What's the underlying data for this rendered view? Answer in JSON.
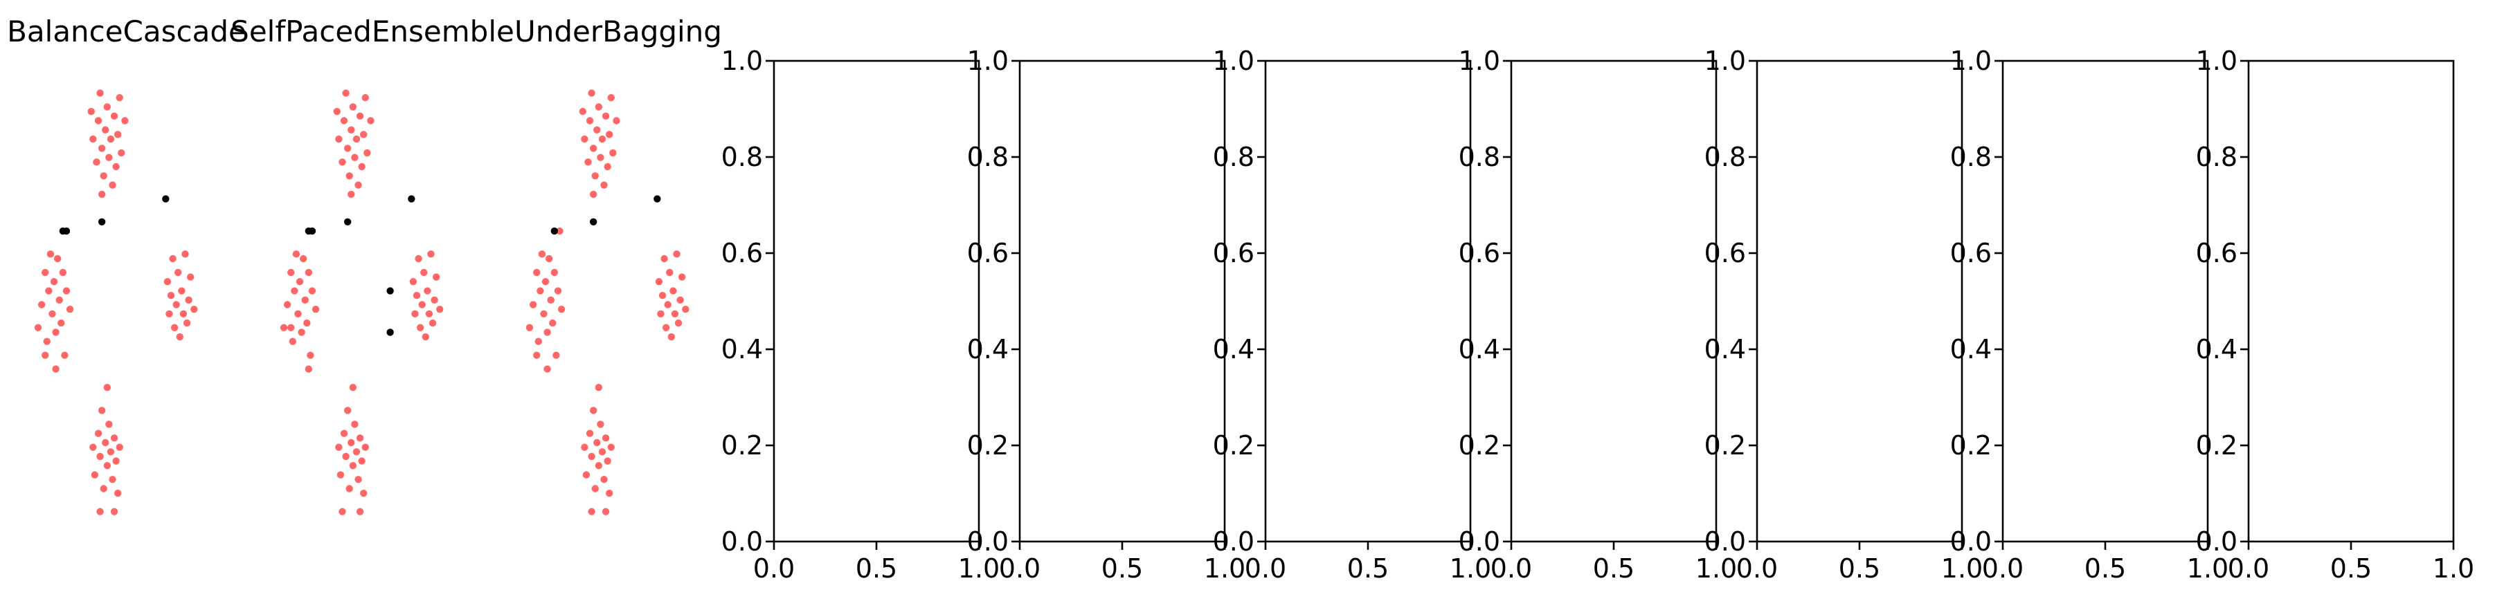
{
  "chart_data": [
    {
      "type": "scatter",
      "title": "BalanceCascade",
      "axes_visible": false,
      "series": [
        {
          "color": "#ff0000",
          "opacity": 0.6,
          "points": [
            [
              0.0,
              0.45
            ],
            [
              0.02,
              0.5
            ],
            [
              0.04,
              0.57
            ],
            [
              0.05,
              0.42
            ],
            [
              0.06,
              0.53
            ],
            [
              0.07,
              0.61
            ],
            [
              0.08,
              0.48
            ],
            [
              0.09,
              0.55
            ],
            [
              0.1,
              0.44
            ],
            [
              0.11,
              0.6
            ],
            [
              0.12,
              0.51
            ],
            [
              0.13,
              0.46
            ],
            [
              0.14,
              0.57
            ],
            [
              0.15,
              0.39
            ],
            [
              0.16,
              0.53
            ],
            [
              0.18,
              0.49
            ],
            [
              0.1,
              0.36
            ],
            [
              0.04,
              0.39
            ],
            [
              0.3,
              0.92
            ],
            [
              0.31,
              0.86
            ],
            [
              0.33,
              0.81
            ],
            [
              0.34,
              0.9
            ],
            [
              0.35,
              0.96
            ],
            [
              0.36,
              0.84
            ],
            [
              0.37,
              0.78
            ],
            [
              0.38,
              0.88
            ],
            [
              0.39,
              0.93
            ],
            [
              0.4,
              0.82
            ],
            [
              0.41,
              0.86
            ],
            [
              0.42,
              0.76
            ],
            [
              0.43,
              0.91
            ],
            [
              0.44,
              0.8
            ],
            [
              0.45,
              0.87
            ],
            [
              0.46,
              0.95
            ],
            [
              0.47,
              0.83
            ],
            [
              0.49,
              0.9
            ],
            [
              0.36,
              0.74
            ],
            [
              0.73,
              0.55
            ],
            [
              0.74,
              0.48
            ],
            [
              0.75,
              0.52
            ],
            [
              0.76,
              0.6
            ],
            [
              0.77,
              0.45
            ],
            [
              0.78,
              0.5
            ],
            [
              0.79,
              0.57
            ],
            [
              0.8,
              0.43
            ],
            [
              0.81,
              0.53
            ],
            [
              0.82,
              0.48
            ],
            [
              0.83,
              0.61
            ],
            [
              0.84,
              0.46
            ],
            [
              0.85,
              0.51
            ],
            [
              0.86,
              0.56
            ],
            [
              0.88,
              0.49
            ],
            [
              0.31,
              0.19
            ],
            [
              0.32,
              0.13
            ],
            [
              0.34,
              0.22
            ],
            [
              0.35,
              0.17
            ],
            [
              0.36,
              0.27
            ],
            [
              0.37,
              0.1
            ],
            [
              0.38,
              0.2
            ],
            [
              0.39,
              0.15
            ],
            [
              0.4,
              0.24
            ],
            [
              0.41,
              0.18
            ],
            [
              0.42,
              0.12
            ],
            [
              0.43,
              0.21
            ],
            [
              0.44,
              0.16
            ],
            [
              0.45,
              0.09
            ],
            [
              0.46,
              0.19
            ],
            [
              0.35,
              0.05
            ],
            [
              0.43,
              0.05
            ],
            [
              0.39,
              0.32
            ]
          ]
        },
        {
          "color": "#000000",
          "opacity": 1,
          "points": [
            [
              0.14,
              0.66
            ],
            [
              0.16,
              0.66
            ],
            [
              0.36,
              0.68
            ],
            [
              0.72,
              0.73
            ]
          ]
        }
      ]
    },
    {
      "type": "scatter",
      "title": "SelfPacedEnsemble",
      "axes_visible": false,
      "series": [
        {
          "color": "#ff0000",
          "opacity": 0.6,
          "points": [
            [
              0.0,
              0.45
            ],
            [
              0.02,
              0.5
            ],
            [
              0.04,
              0.57
            ],
            [
              0.05,
              0.42
            ],
            [
              0.06,
              0.53
            ],
            [
              0.07,
              0.61
            ],
            [
              0.08,
              0.48
            ],
            [
              0.09,
              0.55
            ],
            [
              0.1,
              0.44
            ],
            [
              0.11,
              0.6
            ],
            [
              0.12,
              0.51
            ],
            [
              0.13,
              0.46
            ],
            [
              0.14,
              0.57
            ],
            [
              0.15,
              0.39
            ],
            [
              0.16,
              0.53
            ],
            [
              0.18,
              0.49
            ],
            [
              0.14,
              0.36
            ],
            [
              0.04,
              0.45
            ],
            [
              0.3,
              0.92
            ],
            [
              0.31,
              0.86
            ],
            [
              0.33,
              0.81
            ],
            [
              0.34,
              0.9
            ],
            [
              0.35,
              0.96
            ],
            [
              0.36,
              0.84
            ],
            [
              0.37,
              0.78
            ],
            [
              0.38,
              0.88
            ],
            [
              0.39,
              0.93
            ],
            [
              0.4,
              0.82
            ],
            [
              0.41,
              0.86
            ],
            [
              0.42,
              0.76
            ],
            [
              0.43,
              0.91
            ],
            [
              0.44,
              0.8
            ],
            [
              0.45,
              0.87
            ],
            [
              0.46,
              0.95
            ],
            [
              0.47,
              0.83
            ],
            [
              0.49,
              0.9
            ],
            [
              0.38,
              0.74
            ],
            [
              0.73,
              0.55
            ],
            [
              0.74,
              0.48
            ],
            [
              0.75,
              0.52
            ],
            [
              0.76,
              0.6
            ],
            [
              0.77,
              0.45
            ],
            [
              0.78,
              0.5
            ],
            [
              0.79,
              0.57
            ],
            [
              0.8,
              0.43
            ],
            [
              0.81,
              0.53
            ],
            [
              0.82,
              0.48
            ],
            [
              0.83,
              0.61
            ],
            [
              0.84,
              0.46
            ],
            [
              0.85,
              0.51
            ],
            [
              0.86,
              0.56
            ],
            [
              0.88,
              0.49
            ],
            [
              0.31,
              0.19
            ],
            [
              0.32,
              0.13
            ],
            [
              0.34,
              0.22
            ],
            [
              0.35,
              0.17
            ],
            [
              0.36,
              0.27
            ],
            [
              0.37,
              0.1
            ],
            [
              0.38,
              0.2
            ],
            [
              0.39,
              0.15
            ],
            [
              0.4,
              0.24
            ],
            [
              0.41,
              0.18
            ],
            [
              0.42,
              0.12
            ],
            [
              0.43,
              0.21
            ],
            [
              0.44,
              0.16
            ],
            [
              0.45,
              0.09
            ],
            [
              0.46,
              0.19
            ],
            [
              0.33,
              0.05
            ],
            [
              0.43,
              0.05
            ],
            [
              0.39,
              0.32
            ]
          ]
        },
        {
          "color": "#000000",
          "opacity": 1,
          "points": [
            [
              0.14,
              0.66
            ],
            [
              0.16,
              0.66
            ],
            [
              0.36,
              0.68
            ],
            [
              0.72,
              0.73
            ],
            [
              0.6,
              0.53
            ],
            [
              0.6,
              0.44
            ]
          ]
        }
      ]
    },
    {
      "type": "scatter",
      "title": "UnderBagging",
      "axes_visible": false,
      "series": [
        {
          "color": "#ff0000",
          "opacity": 0.6,
          "points": [
            [
              0.0,
              0.45
            ],
            [
              0.02,
              0.5
            ],
            [
              0.04,
              0.57
            ],
            [
              0.05,
              0.42
            ],
            [
              0.06,
              0.53
            ],
            [
              0.07,
              0.61
            ],
            [
              0.08,
              0.48
            ],
            [
              0.09,
              0.55
            ],
            [
              0.1,
              0.44
            ],
            [
              0.11,
              0.6
            ],
            [
              0.12,
              0.51
            ],
            [
              0.13,
              0.46
            ],
            [
              0.14,
              0.57
            ],
            [
              0.15,
              0.39
            ],
            [
              0.16,
              0.53
            ],
            [
              0.18,
              0.49
            ],
            [
              0.1,
              0.36
            ],
            [
              0.04,
              0.39
            ],
            [
              0.17,
              0.66
            ],
            [
              0.3,
              0.92
            ],
            [
              0.31,
              0.86
            ],
            [
              0.33,
              0.81
            ],
            [
              0.34,
              0.9
            ],
            [
              0.35,
              0.96
            ],
            [
              0.36,
              0.84
            ],
            [
              0.37,
              0.78
            ],
            [
              0.38,
              0.88
            ],
            [
              0.39,
              0.93
            ],
            [
              0.4,
              0.82
            ],
            [
              0.41,
              0.86
            ],
            [
              0.42,
              0.76
            ],
            [
              0.43,
              0.91
            ],
            [
              0.44,
              0.8
            ],
            [
              0.45,
              0.87
            ],
            [
              0.46,
              0.95
            ],
            [
              0.47,
              0.83
            ],
            [
              0.49,
              0.9
            ],
            [
              0.36,
              0.74
            ],
            [
              0.73,
              0.55
            ],
            [
              0.74,
              0.48
            ],
            [
              0.75,
              0.52
            ],
            [
              0.76,
              0.6
            ],
            [
              0.77,
              0.45
            ],
            [
              0.78,
              0.5
            ],
            [
              0.79,
              0.57
            ],
            [
              0.8,
              0.43
            ],
            [
              0.81,
              0.53
            ],
            [
              0.82,
              0.48
            ],
            [
              0.83,
              0.61
            ],
            [
              0.84,
              0.46
            ],
            [
              0.85,
              0.51
            ],
            [
              0.86,
              0.56
            ],
            [
              0.88,
              0.49
            ],
            [
              0.31,
              0.19
            ],
            [
              0.32,
              0.13
            ],
            [
              0.34,
              0.22
            ],
            [
              0.35,
              0.17
            ],
            [
              0.36,
              0.27
            ],
            [
              0.37,
              0.1
            ],
            [
              0.38,
              0.2
            ],
            [
              0.39,
              0.15
            ],
            [
              0.4,
              0.24
            ],
            [
              0.41,
              0.18
            ],
            [
              0.42,
              0.12
            ],
            [
              0.43,
              0.21
            ],
            [
              0.44,
              0.16
            ],
            [
              0.45,
              0.09
            ],
            [
              0.46,
              0.19
            ],
            [
              0.35,
              0.05
            ],
            [
              0.43,
              0.05
            ],
            [
              0.39,
              0.32
            ]
          ]
        },
        {
          "color": "#000000",
          "opacity": 1,
          "points": [
            [
              0.14,
              0.66
            ],
            [
              0.36,
              0.68
            ],
            [
              0.72,
              0.73
            ]
          ]
        }
      ]
    },
    {
      "type": "scatter",
      "empty": true,
      "xlim": [
        0,
        1
      ],
      "ylim": [
        0,
        1
      ],
      "xticks": [
        "0.0",
        "0.5",
        "1.0"
      ],
      "yticks": [
        "0.0",
        "0.2",
        "0.4",
        "0.6",
        "0.8",
        "1.0"
      ]
    },
    {
      "type": "scatter",
      "empty": true,
      "xlim": [
        0,
        1
      ],
      "ylim": [
        0,
        1
      ],
      "xticks": [
        "0.0",
        "0.5",
        "1.0"
      ],
      "yticks": [
        "0.0",
        "0.2",
        "0.4",
        "0.6",
        "0.8",
        "1.0"
      ]
    },
    {
      "type": "scatter",
      "empty": true,
      "xlim": [
        0,
        1
      ],
      "ylim": [
        0,
        1
      ],
      "xticks": [
        "0.0",
        "0.5",
        "1.0"
      ],
      "yticks": [
        "0.0",
        "0.2",
        "0.4",
        "0.6",
        "0.8",
        "1.0"
      ]
    },
    {
      "type": "scatter",
      "empty": true,
      "xlim": [
        0,
        1
      ],
      "ylim": [
        0,
        1
      ],
      "xticks": [
        "0.0",
        "0.5",
        "1.0"
      ],
      "yticks": [
        "0.0",
        "0.2",
        "0.4",
        "0.6",
        "0.8",
        "1.0"
      ]
    },
    {
      "type": "scatter",
      "empty": true,
      "xlim": [
        0,
        1
      ],
      "ylim": [
        0,
        1
      ],
      "xticks": [
        "0.0",
        "0.5",
        "1.0"
      ],
      "yticks": [
        "0.0",
        "0.2",
        "0.4",
        "0.6",
        "0.8",
        "1.0"
      ]
    },
    {
      "type": "scatter",
      "empty": true,
      "xlim": [
        0,
        1
      ],
      "ylim": [
        0,
        1
      ],
      "xticks": [
        "0.0",
        "0.5",
        "1.0"
      ],
      "yticks": [
        "0.0",
        "0.2",
        "0.4",
        "0.6",
        "0.8",
        "1.0"
      ]
    },
    {
      "type": "scatter",
      "empty": true,
      "xlim": [
        0,
        1
      ],
      "ylim": [
        0,
        1
      ],
      "xticks": [
        "0.0",
        "0.5",
        "1.0"
      ],
      "yticks": [
        "0.0",
        "0.2",
        "0.4",
        "0.6",
        "0.8",
        "1.0"
      ]
    }
  ]
}
